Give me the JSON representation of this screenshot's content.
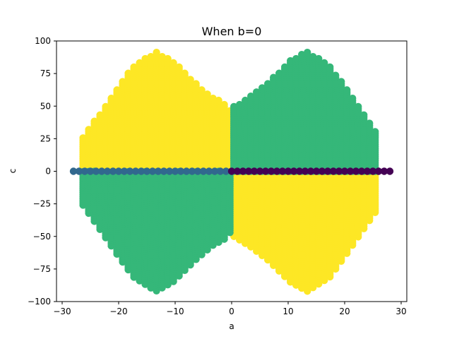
{
  "chart_data": {
    "type": "scatter",
    "title": "When b=0",
    "xlabel": "a",
    "ylabel": "c",
    "xlim": [
      -31,
      31
    ],
    "ylim": [
      -100,
      100
    ],
    "xticks": [
      -30,
      -20,
      -10,
      0,
      10,
      20,
      30
    ],
    "yticks": [
      -100,
      -75,
      -50,
      -25,
      0,
      25,
      50,
      75,
      100
    ],
    "grid": false,
    "legend": "none",
    "colors": {
      "yellow": "#fde725",
      "green": "#35b779",
      "blue": "#31688e",
      "purple": "#440154"
    },
    "series": [
      {
        "color": "#fde725",
        "regions": [
          {
            "x_min": -26.3,
            "x_max": 0.1,
            "y_min": 0,
            "y_max_at_x": [
              [
                -26.3,
                26
              ],
              [
                -23.4,
                44
              ],
              [
                -20.4,
                63
              ],
              [
                -17.4,
                81
              ],
              [
                -13.4,
                92
              ],
              [
                -10.4,
                85
              ],
              [
                -6.4,
                68
              ],
              [
                -3.4,
                57
              ],
              [
                -0.4,
                50
              ],
              [
                0.1,
                35
              ]
            ]
          },
          {
            "x_min": 0.4,
            "x_max": 26.3,
            "y_min_at_x": [
              [
                0.4,
                -50
              ],
              [
                3.4,
                -58
              ],
              [
                6.4,
                -68
              ],
              [
                10.4,
                -85
              ],
              [
                13.4,
                -92
              ],
              [
                17.4,
                -81
              ],
              [
                20.4,
                -63
              ],
              [
                23.4,
                -44
              ],
              [
                26.3,
                -26
              ]
            ],
            "y_max": 0
          }
        ]
      },
      {
        "color": "#35b779",
        "regions": [
          {
            "x_min": 0.4,
            "x_max": 26.3,
            "y_min": 0,
            "y_max_at_x": [
              [
                0.4,
                50
              ],
              [
                3.4,
                58
              ],
              [
                6.4,
                68
              ],
              [
                10.4,
                85
              ],
              [
                13.4,
                92
              ],
              [
                17.4,
                81
              ],
              [
                20.4,
                63
              ],
              [
                23.4,
                44
              ],
              [
                26.3,
                26
              ]
            ]
          },
          {
            "x_min": -26.3,
            "x_max": 0.1,
            "y_min_at_x": [
              [
                -26.3,
                -26
              ],
              [
                -23.4,
                -44
              ],
              [
                -20.4,
                -63
              ],
              [
                -17.4,
                -81
              ],
              [
                -13.4,
                -92
              ],
              [
                -10.4,
                -85
              ],
              [
                -6.4,
                -68
              ],
              [
                -3.4,
                -57
              ],
              [
                -0.4,
                -50
              ],
              [
                0.1,
                -35
              ]
            ],
            "y_max": 0
          }
        ]
      },
      {
        "color": "#31688e",
        "x_range": [
          -28,
          -0.5
        ],
        "y": 0
      },
      {
        "color": "#440154",
        "x_range": [
          0,
          28
        ],
        "y": 0
      }
    ]
  }
}
